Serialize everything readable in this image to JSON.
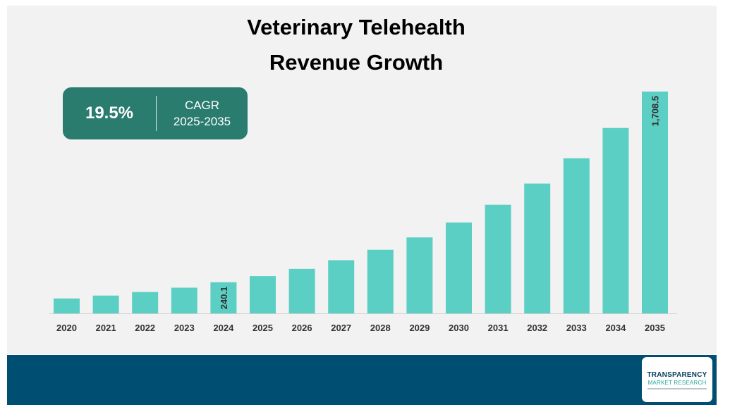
{
  "title_line1": "Veterinary Telehealth",
  "title_line2": "Revenue Growth",
  "cagr": {
    "value": "19.5%",
    "label_line1": "CAGR",
    "label_line2": "2025-2035"
  },
  "logo": {
    "line1": "TRANSPARENCY",
    "line2": "MARKET RESEARCH"
  },
  "colors": {
    "bar": "#5ccfc4",
    "cagr_box": "#2a7c6f",
    "footer": "#004f72"
  },
  "chart_data": {
    "type": "bar",
    "categories": [
      "2020",
      "2021",
      "2022",
      "2023",
      "2024",
      "2025",
      "2026",
      "2027",
      "2028",
      "2029",
      "2030",
      "2031",
      "2032",
      "2033",
      "2034",
      "2035"
    ],
    "values": [
      115,
      137,
      165,
      198,
      240.1,
      287,
      343,
      410,
      490,
      585,
      700,
      837,
      1000,
      1195,
      1428,
      1708.5
    ],
    "data_labels": {
      "4": "240.1",
      "15": "1,708.5"
    },
    "title": "Veterinary Telehealth Revenue Growth",
    "xlabel": "",
    "ylabel": "",
    "ylim": [
      0,
      1708.5
    ],
    "grid": false,
    "legend": "none"
  }
}
